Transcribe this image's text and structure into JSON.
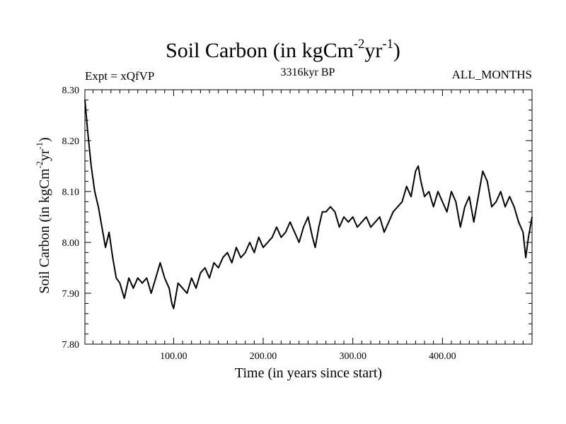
{
  "chart_data": {
    "type": "line",
    "title": "Soil Carbon (in kgCm",
    "title_units": {
      "exp1": "-2",
      "mid": "yr",
      "exp2": "-1",
      "close": ")"
    },
    "subtitle_left": "Expt = xQfVP",
    "subtitle_center": "3316kyr BP",
    "subtitle_right": "ALL_MONTHS",
    "xlabel": "Time (in years since start)",
    "ylabel": "Soil Carbon (in kgCm",
    "xlim": [
      1,
      500
    ],
    "ylim": [
      7.8,
      8.3
    ],
    "x_ticks": [
      100,
      200,
      300,
      400
    ],
    "x_tick_labels": [
      "100.00",
      "200.00",
      "300.00",
      "400.00"
    ],
    "y_ticks": [
      7.8,
      7.9,
      8.0,
      8.1,
      8.2,
      8.3
    ],
    "y_tick_labels": [
      "7.80",
      "7.90",
      "8.00",
      "8.10",
      "8.20",
      "8.30"
    ],
    "series": [
      {
        "name": "Soil Carbon",
        "color": "#000000",
        "x": [
          1,
          4,
          8,
          12,
          16,
          20,
          24,
          28,
          32,
          36,
          40,
          45,
          50,
          55,
          60,
          65,
          70,
          75,
          80,
          85,
          90,
          95,
          98,
          100,
          105,
          110,
          115,
          120,
          125,
          130,
          135,
          140,
          145,
          150,
          155,
          160,
          165,
          170,
          175,
          180,
          185,
          190,
          195,
          200,
          205,
          210,
          215,
          220,
          225,
          230,
          235,
          240,
          245,
          250,
          255,
          258,
          262,
          266,
          270,
          275,
          280,
          285,
          290,
          295,
          300,
          305,
          310,
          315,
          320,
          325,
          330,
          335,
          340,
          345,
          350,
          355,
          360,
          365,
          370,
          373,
          376,
          380,
          385,
          390,
          395,
          400,
          405,
          410,
          415,
          420,
          425,
          430,
          435,
          440,
          445,
          450,
          455,
          460,
          465,
          470,
          475,
          480,
          485,
          490,
          493,
          496,
          500
        ],
        "y": [
          8.28,
          8.22,
          8.15,
          8.1,
          8.07,
          8.03,
          7.99,
          8.02,
          7.97,
          7.93,
          7.92,
          7.89,
          7.93,
          7.91,
          7.93,
          7.92,
          7.93,
          7.9,
          7.93,
          7.96,
          7.93,
          7.91,
          7.88,
          7.87,
          7.92,
          7.91,
          7.9,
          7.93,
          7.91,
          7.94,
          7.95,
          7.93,
          7.96,
          7.95,
          7.97,
          7.98,
          7.96,
          7.99,
          7.97,
          7.98,
          8.0,
          7.98,
          8.01,
          7.99,
          8.0,
          8.01,
          8.03,
          8.01,
          8.02,
          8.04,
          8.02,
          8.0,
          8.03,
          8.05,
          8.01,
          7.99,
          8.03,
          8.06,
          8.06,
          8.07,
          8.06,
          8.03,
          8.05,
          8.04,
          8.05,
          8.03,
          8.04,
          8.05,
          8.03,
          8.04,
          8.05,
          8.02,
          8.04,
          8.06,
          8.07,
          8.08,
          8.11,
          8.09,
          8.14,
          8.15,
          8.12,
          8.09,
          8.1,
          8.07,
          8.1,
          8.08,
          8.06,
          8.1,
          8.08,
          8.03,
          8.07,
          8.09,
          8.04,
          8.09,
          8.14,
          8.12,
          8.07,
          8.08,
          8.1,
          8.07,
          8.09,
          8.07,
          8.04,
          8.02,
          7.97,
          8.01,
          8.05
        ]
      }
    ]
  }
}
